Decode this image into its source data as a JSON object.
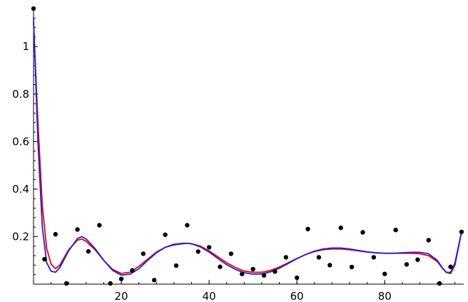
{
  "chart_data": {
    "type": "scatter",
    "xlim": [
      0,
      98
    ],
    "ylim": [
      0,
      1.16
    ],
    "x_ticks": [
      20,
      40,
      60,
      80
    ],
    "y_ticks": [
      0.2,
      0.4,
      0.6,
      0.8,
      1
    ],
    "x_minor_step": 4,
    "y_minor_step": 0.04,
    "grid": false,
    "legend": "none",
    "points": {
      "name": "",
      "color": "#000000",
      "x": [
        0,
        2.5,
        5,
        7.5,
        10,
        12.5,
        15,
        17.5,
        20,
        22.5,
        25,
        27.5,
        30,
        32.5,
        35,
        37.5,
        40,
        42.5,
        45,
        47.5,
        50,
        52.5,
        55,
        57.5,
        60,
        62.5,
        65,
        67.5,
        70,
        72.5,
        75,
        77.5,
        80,
        82.5,
        85,
        87.5,
        90,
        92.5,
        95,
        97.5
      ],
      "y": [
        1.16,
        0.105,
        0.21,
        0.003,
        0.23,
        0.138,
        0.248,
        0.003,
        0.022,
        0.058,
        0.128,
        0.017,
        0.208,
        0.078,
        0.248,
        0.137,
        0.155,
        0.073,
        0.128,
        0.043,
        0.063,
        0.037,
        0.053,
        0.113,
        0.027,
        0.232,
        0.113,
        0.08,
        0.237,
        0.072,
        0.218,
        0.113,
        0.043,
        0.228,
        0.083,
        0.103,
        0.185,
        0.003,
        0.073,
        0.22
      ]
    },
    "series": [
      {
        "name": "",
        "color": "#e8000b",
        "x": [
          0,
          1,
          2,
          3,
          4,
          5,
          6,
          8,
          10,
          11,
          12,
          14,
          16,
          18,
          20,
          22,
          24,
          26,
          28,
          30,
          32,
          34,
          35,
          36,
          38,
          40,
          42,
          44,
          46,
          48,
          50,
          52,
          54,
          56,
          58,
          60,
          62,
          64,
          66,
          68,
          70,
          72,
          74,
          76,
          78,
          80,
          82,
          84,
          86,
          88,
          90,
          92,
          93,
          94,
          95,
          96,
          97.5
        ],
        "y": [
          1.1,
          0.68,
          0.33,
          0.15,
          0.085,
          0.065,
          0.08,
          0.145,
          0.185,
          0.19,
          0.18,
          0.145,
          0.1,
          0.062,
          0.045,
          0.05,
          0.075,
          0.105,
          0.135,
          0.155,
          0.165,
          0.17,
          0.172,
          0.17,
          0.16,
          0.14,
          0.115,
          0.09,
          0.07,
          0.055,
          0.05,
          0.05,
          0.058,
          0.072,
          0.09,
          0.108,
          0.125,
          0.137,
          0.145,
          0.148,
          0.148,
          0.145,
          0.14,
          0.135,
          0.132,
          0.13,
          0.13,
          0.13,
          0.13,
          0.128,
          0.12,
          0.095,
          0.07,
          0.05,
          0.05,
          0.09,
          0.22
        ]
      },
      {
        "name": "",
        "color": "#2020d8",
        "x": [
          0,
          1,
          2,
          3,
          4,
          5,
          6,
          8,
          10,
          11,
          12,
          14,
          16,
          18,
          20,
          22,
          24,
          26,
          28,
          30,
          32,
          34,
          35,
          36,
          38,
          40,
          42,
          44,
          46,
          48,
          50,
          52,
          54,
          56,
          58,
          60,
          62,
          64,
          66,
          68,
          70,
          72,
          74,
          76,
          78,
          80,
          82,
          84,
          86,
          88,
          90,
          92,
          93,
          94,
          95,
          96,
          97.5
        ],
        "y": [
          1.12,
          0.6,
          0.24,
          0.09,
          0.055,
          0.05,
          0.07,
          0.14,
          0.192,
          0.2,
          0.19,
          0.15,
          0.1,
          0.058,
          0.038,
          0.042,
          0.065,
          0.1,
          0.132,
          0.155,
          0.168,
          0.172,
          0.172,
          0.17,
          0.157,
          0.135,
          0.108,
          0.082,
          0.062,
          0.048,
          0.042,
          0.043,
          0.052,
          0.067,
          0.087,
          0.107,
          0.125,
          0.139,
          0.148,
          0.152,
          0.152,
          0.148,
          0.142,
          0.136,
          0.132,
          0.13,
          0.13,
          0.132,
          0.134,
          0.134,
          0.128,
          0.1,
          0.072,
          0.05,
          0.045,
          0.08,
          0.22
        ]
      }
    ]
  }
}
